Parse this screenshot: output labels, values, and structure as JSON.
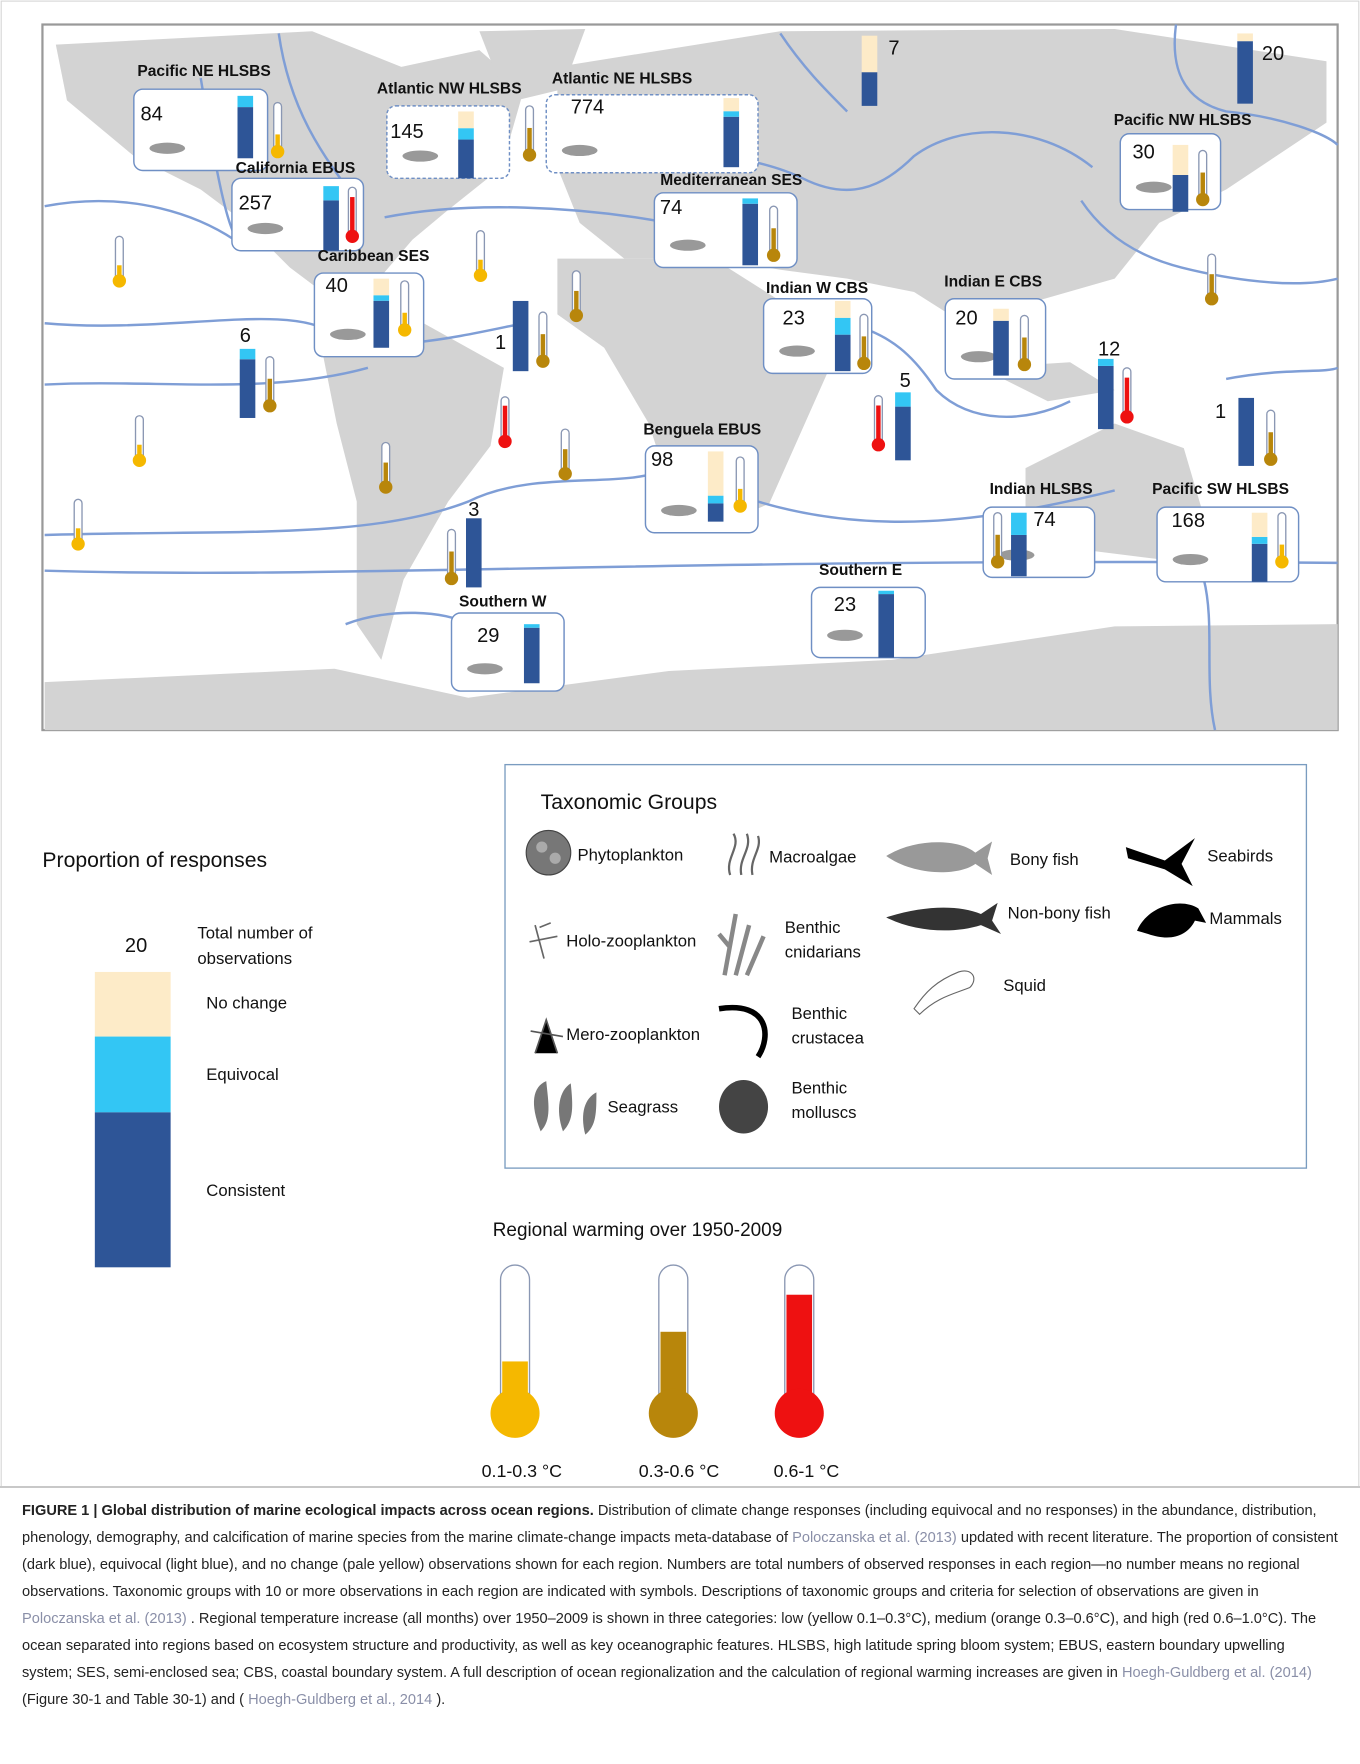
{
  "map": {
    "regions": [
      {
        "name": "Pacific NE HLSBS",
        "count": 84,
        "values": [
          0,
          18,
          82
        ],
        "thermometer": "#f5b800"
      },
      {
        "name": "Atlantic NW HLSBS",
        "count": 145,
        "values": [
          25,
          17,
          58
        ],
        "thermometer": "#b8860b"
      },
      {
        "name": "Atlantic NE HLSBS",
        "count": 774,
        "values": [
          19,
          8,
          73
        ]
      },
      {
        "name": "California EBUS",
        "count": 257,
        "values": [
          0,
          22,
          78
        ],
        "thermometer": "#ee1111"
      },
      {
        "name": "Mediterranean SES",
        "count": 74,
        "values": [
          0,
          8,
          92
        ],
        "thermometer": "#b8860b"
      },
      {
        "name": "Pacific NW HLSBS",
        "count": 30,
        "values": [
          45,
          0,
          55
        ],
        "thermometer": "#b8860b"
      },
      {
        "name": "Caribbean SES",
        "count": 40,
        "values": [
          24,
          8,
          68
        ],
        "thermometer": "#f5b800"
      },
      {
        "name": "Indian W CBS",
        "count": 23,
        "values": [
          24,
          24,
          52
        ],
        "thermometer": "#b8860b"
      },
      {
        "name": "Indian E CBS",
        "count": 20,
        "values": [
          18,
          0,
          82
        ],
        "thermometer": "#b8860b"
      },
      {
        "name": "Benguela EBUS",
        "count": 98,
        "values": [
          63,
          11,
          26
        ],
        "thermometer": "#f5b800"
      },
      {
        "name": "Indian HLSBS",
        "count": 74,
        "values": [
          0,
          35,
          65
        ],
        "thermometer": "#b8860b"
      },
      {
        "name": "Pacific SW HLSBS",
        "count": 168,
        "values": [
          35,
          10,
          55
        ],
        "thermometer": "#f5b800"
      },
      {
        "name": "Southern E",
        "count": 23,
        "values": [
          0,
          5,
          95
        ]
      },
      {
        "name": "Southern W",
        "count": 29,
        "values": [
          0,
          6,
          94
        ]
      },
      {
        "count": 7,
        "values": [
          52,
          0,
          48
        ]
      },
      {
        "count": 20,
        "values": [
          11,
          0,
          89
        ]
      },
      {
        "count": 6,
        "values": [
          0,
          15,
          85
        ],
        "thermometer": "#b8860b"
      },
      {
        "count": 1,
        "values": [
          0,
          0,
          100
        ],
        "thermometer": "#b8860b"
      },
      {
        "count": 12,
        "values": [
          0,
          10,
          90
        ],
        "thermometer": "#ee1111"
      },
      {
        "count": 5,
        "values": [
          0,
          21,
          79
        ],
        "thermometer": "#ee1111"
      },
      {
        "count": 1,
        "values": [
          0,
          0,
          100
        ],
        "thermometer": "#b8860b"
      },
      {
        "count": 3,
        "values": [
          0,
          0,
          100
        ],
        "thermometer": "#b8860b"
      }
    ],
    "thermometers": [
      "#f5b800",
      "#f5b800",
      "#b8860b",
      "#b8860b",
      "#ee1111",
      "#f5b800",
      "#b8860b",
      "#b8860b",
      "#f5b800"
    ]
  },
  "legend": {
    "title": "Proportion of responses",
    "count": 20,
    "count_label": [
      "Total number of",
      "observations"
    ],
    "items": [
      {
        "label": "No change",
        "color": "#fdebc8"
      },
      {
        "label": "Equivocal",
        "color": "#33c6f4"
      },
      {
        "label": "Consistent",
        "color": "#2e5597"
      }
    ]
  },
  "taxonomic_groups": {
    "title": "Taxonomic Groups",
    "items": [
      [
        "Phytoplankton"
      ],
      [
        "Macroalgae"
      ],
      [
        "Bony fish"
      ],
      [
        "Seabirds"
      ],
      [
        "Holo-zooplankton"
      ],
      [
        "Benthic",
        "cnidarians"
      ],
      [
        "Non-bony fish"
      ],
      [
        "Mammals"
      ],
      [
        "Squid"
      ],
      [
        "Mero-zooplankton"
      ],
      [
        "Benthic",
        "crustacea"
      ],
      [
        "Seagrass"
      ],
      [
        "Benthic",
        "molluscs"
      ]
    ]
  },
  "warming": {
    "title": "Regional warming over 1950-2009",
    "items": [
      {
        "label": "0.1-0.3 °C",
        "color": "#f5b800"
      },
      {
        "label": "0.3-0.6 °C",
        "color": "#b8860b"
      },
      {
        "label": "0.6-1 °C",
        "color": "#ee1111"
      }
    ]
  },
  "caption": {
    "label": "FIGURE 1 |",
    "title": "Global distribution of marine ecological impacts across ocean regions.",
    "parts": [
      {
        "text": "Distribution of climate change responses (including equivocal and no responses) in the abundance, distribution, phenology, demography, and calcification of marine species from the marine climate-change impacts meta-database of"
      },
      {
        "text": "Poloczanska et al. (2013)",
        "link": true
      },
      {
        "text": "updated with recent literature. The proportion of consistent (dark blue), equivocal (light blue), and no change (pale yellow) observations shown for each region. Numbers are total numbers of observed responses in each region—no number means no regional observations. Taxonomic groups with 10 or more observations in each region are indicated with symbols. Descriptions of taxonomic groups and criteria for selection of observations are given in"
      },
      {
        "text": "Poloczanska et al. (2013)",
        "link": true
      },
      {
        "text": ". Regional temperature increase (all months) over 1950–2009 is shown in three categories: low (yellow 0.1–0.3°C), medium (orange 0.3–0.6°C), and high (red 0.6–1.0°C). The ocean separated into regions based on ecosystem structure and productivity, as well as key oceanographic features. HLSBS, high latitude spring bloom system; EBUS, eastern boundary upwelling system; SES, semi-enclosed sea; CBS, coastal boundary system. A full description of ocean regionalization and the calculation of regional warming increases are given in"
      },
      {
        "text": "Hoegh-Guldberg et al. (2014)",
        "link": true
      },
      {
        "text": "(Figure 30-1 and Table 30-1) and ("
      },
      {
        "text": "Hoegh-Guldberg et al., 2014",
        "link": true
      },
      {
        "text": ")."
      }
    ]
  }
}
